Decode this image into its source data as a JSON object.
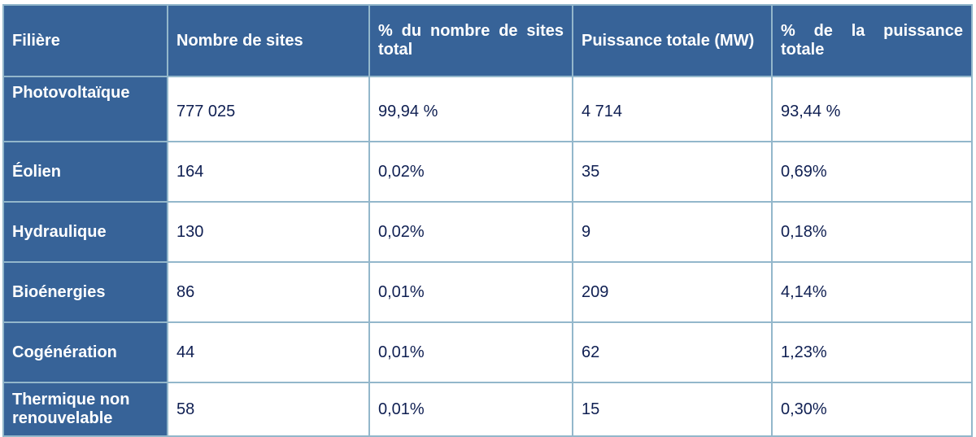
{
  "table": {
    "headers": [
      "Filière",
      "Nombre de sites",
      "% du nombre de sites total",
      "Puissance totale (MW)",
      "% de la puissance totale"
    ],
    "rows": [
      {
        "filiere": "Photovoltaïque",
        "sites": "777 025",
        "pct_sites": "99,94 %",
        "puissance": "4 714",
        "pct_puissance": "93,44 %"
      },
      {
        "filiere": "Éolien",
        "sites": "164",
        "pct_sites": "0,02%",
        "puissance": "35",
        "pct_puissance": "0,69%"
      },
      {
        "filiere": "Hydraulique",
        "sites": "130",
        "pct_sites": "0,02%",
        "puissance": "9",
        "pct_puissance": "0,18%"
      },
      {
        "filiere": "Bioénergies",
        "sites": "86",
        "pct_sites": "0,01%",
        "puissance": "209",
        "pct_puissance": "4,14%"
      },
      {
        "filiere": "Cogénération",
        "sites": "44",
        "pct_sites": "0,01%",
        "puissance": "62",
        "pct_puissance": "1,23%"
      },
      {
        "filiere": "Thermique non renouvelable",
        "sites": "58",
        "pct_sites": "0,01%",
        "puissance": "15",
        "pct_puissance": "0,30%"
      }
    ]
  },
  "colors": {
    "header_bg": "#376398",
    "border": "#93b7cb",
    "body_text": "#0f1f52"
  }
}
